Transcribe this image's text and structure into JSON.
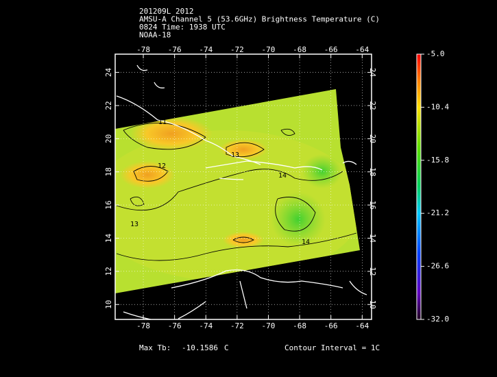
{
  "header": {
    "lines": [
      "201209L 2012",
      "AMSU-A Channel 5 (53.6GHz) Brightness Temperature (C)",
      "0824 Time: 1938 UTC",
      "NOAA-18"
    ]
  },
  "map": {
    "lon_lim": [
      -79.8,
      -63.4
    ],
    "lat_lim": [
      9.1,
      25.1
    ],
    "lon_ticks": [
      -78,
      -76,
      -74,
      -72,
      -70,
      -68,
      -66,
      -64
    ],
    "lat_ticks": [
      24,
      22,
      20,
      18,
      16,
      14,
      12,
      10
    ],
    "contour_labels": [
      "11",
      "12",
      "13",
      "14",
      "13",
      "14"
    ]
  },
  "colorbar": {
    "lim": [
      -32,
      -5
    ],
    "ticks": [
      {
        "value": -5,
        "label": "-5.0"
      },
      -10.4,
      -15.8,
      -21.2,
      -26.6,
      {
        "value": -32,
        "label": "-32.0"
      }
    ]
  },
  "footer": {
    "max_label": "Max Tb:",
    "max_value": -10.1586,
    "unit": "C",
    "contour_interval": "Contour Interval = 1C"
  }
}
